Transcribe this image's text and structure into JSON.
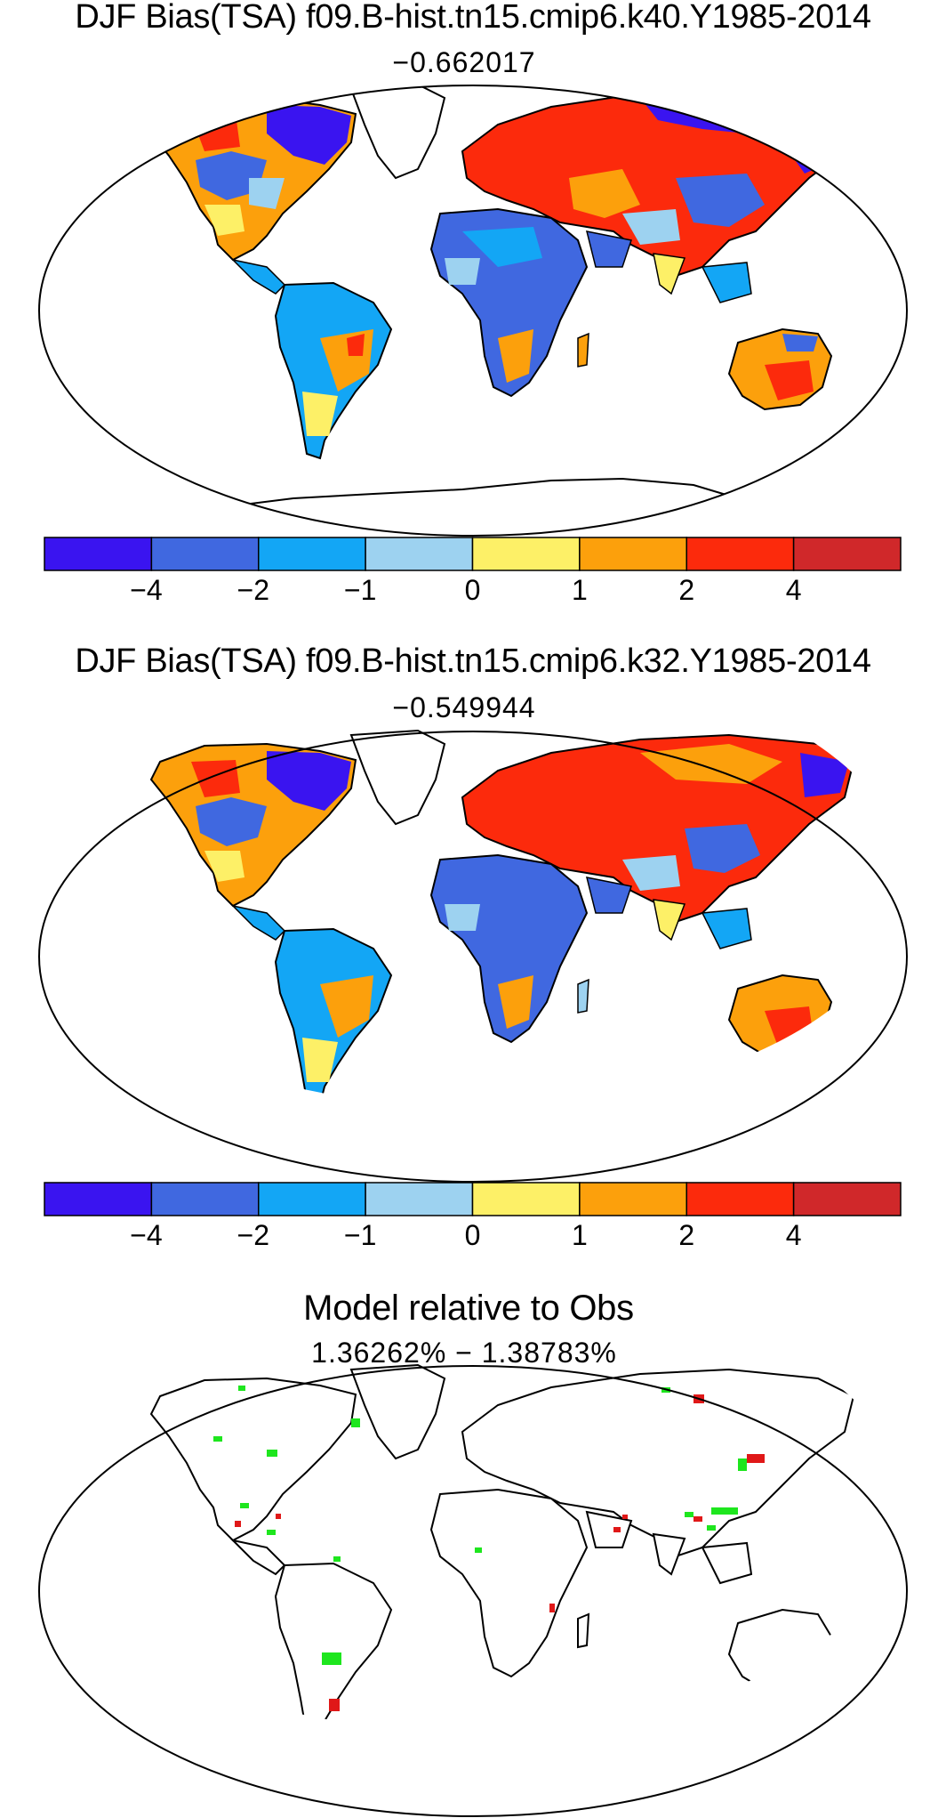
{
  "panels": [
    {
      "title": "DJF Bias(TSA) f09.B-hist.tn15.cmip6.k40.Y1985-2014",
      "global_mean": "−0.662017"
    },
    {
      "title": "DJF Bias(TSA) f09.B-hist.tn15.cmip6.k32.Y1985-2014",
      "global_mean": "−0.549944"
    },
    {
      "title": "Model relative to Obs",
      "subtitle": "1.36262% − 1.38783%"
    }
  ],
  "colorbar": {
    "colors": [
      "#3a14f0",
      "#4068e0",
      "#13a6f5",
      "#9dd2f0",
      "#fdf067",
      "#fca00c",
      "#fc2a0c",
      "#d0282a"
    ],
    "tick_labels": [
      "−4",
      "−2",
      "−1",
      "0",
      "1",
      "2",
      "4"
    ]
  },
  "significance_colors": {
    "improved": "#1ee61e",
    "worsened": "#e01818"
  }
}
